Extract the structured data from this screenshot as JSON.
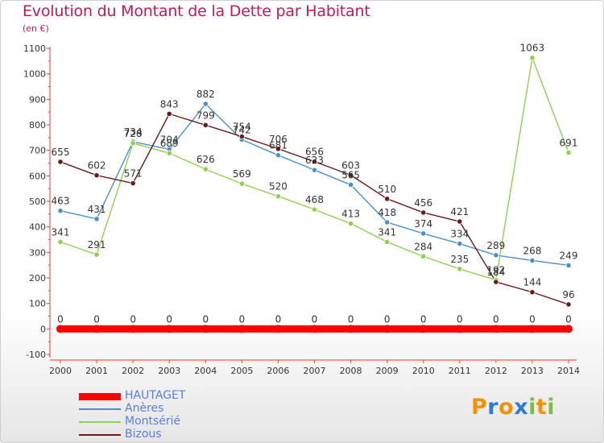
{
  "header": {
    "title": "Evolution du Montant de la Dette par Habitant",
    "unit": "(en €)"
  },
  "logo": {
    "text": "Proxiti",
    "letters": [
      "P",
      "r",
      "o",
      "x",
      "i",
      "t",
      "i"
    ],
    "colors": [
      "#f39200",
      "#2a7fd0",
      "#f39200",
      "#2a7fd0",
      "#7bc043",
      "#f39200",
      "#7bc043"
    ]
  },
  "chart_data": {
    "type": "line",
    "title": "Evolution du Montant de la Dette par Habitant",
    "ylabel": "(en €)",
    "xlabel": "",
    "x": [
      "2000",
      "2001",
      "2002",
      "2003",
      "2004",
      "2005",
      "2006",
      "2007",
      "2008",
      "2009",
      "2010",
      "2011",
      "2012",
      "2013",
      "2014"
    ],
    "ylim": [
      -100,
      1100
    ],
    "yticks": [
      -100,
      0,
      100,
      200,
      300,
      400,
      500,
      600,
      700,
      800,
      900,
      1000,
      1100
    ],
    "grid": false,
    "legend": "bottom-left",
    "series": [
      {
        "name": "HAUTAGET",
        "color": "#ff0000",
        "values": [
          0,
          0,
          0,
          0,
          0,
          0,
          0,
          0,
          0,
          0,
          0,
          0,
          0,
          0,
          0
        ]
      },
      {
        "name": "Anères",
        "color": "#4b8fd1",
        "values": [
          463,
          431,
          734,
          704,
          882,
          742,
          681,
          623,
          565,
          418,
          374,
          334,
          289,
          268,
          249
        ]
      },
      {
        "name": "Montsérié",
        "color": "#8fd14f",
        "values": [
          341,
          291,
          728,
          689,
          626,
          569,
          520,
          468,
          413,
          341,
          284,
          235,
          192,
          1063,
          691
        ]
      },
      {
        "name": "Bizous",
        "color": "#6b1a1a",
        "values": [
          655,
          602,
          571,
          843,
          799,
          754,
          706,
          656,
          603,
          510,
          456,
          421,
          184,
          144,
          96
        ]
      }
    ]
  }
}
